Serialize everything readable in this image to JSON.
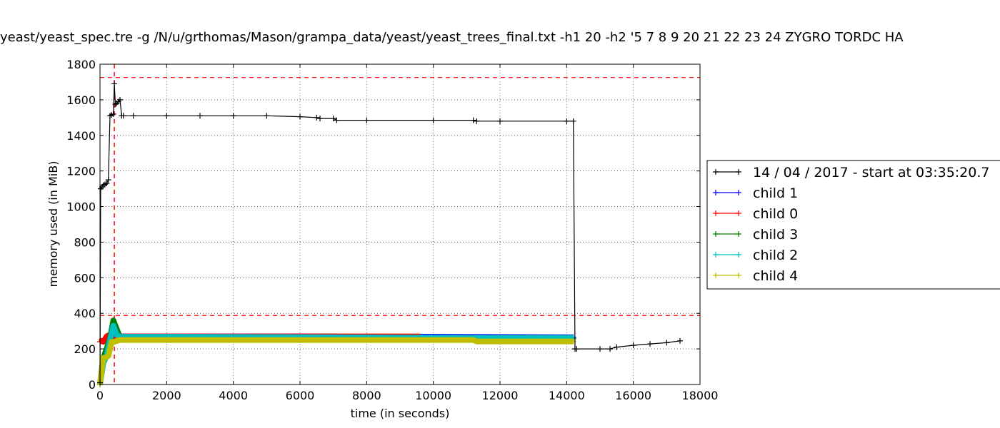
{
  "chart_data": {
    "type": "line",
    "title": "yeast/yeast_spec.tre -g /N/u/grthomas/Mason/grampa_data/yeast/yeast_trees_final.txt -h1 20 -h2 '5 7 8 9 20 21 22 23 24 ZYGRO TORDC HA",
    "xlabel": "time (in seconds)",
    "ylabel": "memory used (in MiB)",
    "xlim": [
      0,
      18000
    ],
    "ylim": [
      0,
      1800
    ],
    "xticks": [
      0,
      2000,
      4000,
      6000,
      8000,
      10000,
      12000,
      14000,
      16000,
      18000
    ],
    "yticks": [
      0,
      200,
      400,
      600,
      800,
      1000,
      1200,
      1400,
      1600,
      1800
    ],
    "grid": true,
    "legend_position": "right-outside",
    "reference_lines": {
      "horizontal": [
        1725,
        388
      ],
      "vertical": [
        430
      ],
      "color": "#ff0000"
    },
    "series": [
      {
        "name": "14 / 04 / 2017 - start at 03:35:20.7",
        "color": "#000000",
        "x": [
          0,
          20,
          60,
          100,
          150,
          200,
          250,
          300,
          350,
          400,
          430,
          460,
          500,
          550,
          600,
          650,
          700,
          1000,
          2000,
          3000,
          4000,
          5000,
          6000,
          6500,
          6600,
          7000,
          7100,
          8000,
          10000,
          11200,
          11300,
          12000,
          14000,
          14200,
          14250,
          14300,
          15000,
          15300,
          15500,
          16000,
          16500,
          17000,
          17400
        ],
        "y": [
          10,
          1100,
          1110,
          1120,
          1125,
          1130,
          1150,
          1510,
          1515,
          1520,
          1690,
          1575,
          1580,
          1590,
          1600,
          1510,
          1510,
          1510,
          1510,
          1510,
          1510,
          1510,
          1505,
          1500,
          1495,
          1495,
          1485,
          1485,
          1485,
          1485,
          1480,
          1480,
          1480,
          1480,
          200,
          200,
          200,
          200,
          210,
          220,
          228,
          235,
          245
        ]
      },
      {
        "name": "child 1",
        "color": "#0000ff",
        "x": [
          400,
          500,
          600,
          2000,
          6000,
          10000,
          14200
        ],
        "y": [
          270,
          272,
          270,
          270,
          270,
          268,
          265
        ]
      },
      {
        "name": "child 0",
        "color": "#ff0000",
        "x": [
          0,
          50,
          100,
          200,
          300,
          400,
          600,
          2000,
          6000,
          9600
        ],
        "y": [
          240,
          245,
          240,
          270,
          280,
          275,
          270,
          270,
          270,
          270
        ]
      },
      {
        "name": "child 3",
        "color": "#008000",
        "x": [
          0,
          50,
          100,
          200,
          300,
          400,
          600,
          2000,
          6000,
          10000,
          14200
        ],
        "y": [
          0,
          80,
          150,
          200,
          260,
          360,
          265,
          265,
          265,
          262,
          258
        ]
      },
      {
        "name": "child 2",
        "color": "#00bfbf",
        "x": [
          0,
          100,
          200,
          300,
          400,
          500,
          600,
          2000,
          6000,
          11200,
          14200
        ],
        "y": [
          0,
          120,
          160,
          250,
          330,
          280,
          268,
          268,
          266,
          262,
          262
        ]
      },
      {
        "name": "child 4",
        "color": "#bfbf00",
        "x": [
          0,
          100,
          150,
          250,
          350,
          430,
          500,
          600,
          2000,
          6000,
          11200,
          11300,
          14200
        ],
        "y": [
          0,
          150,
          150,
          160,
          240,
          240,
          245,
          250,
          250,
          250,
          250,
          242,
          242
        ]
      }
    ]
  }
}
